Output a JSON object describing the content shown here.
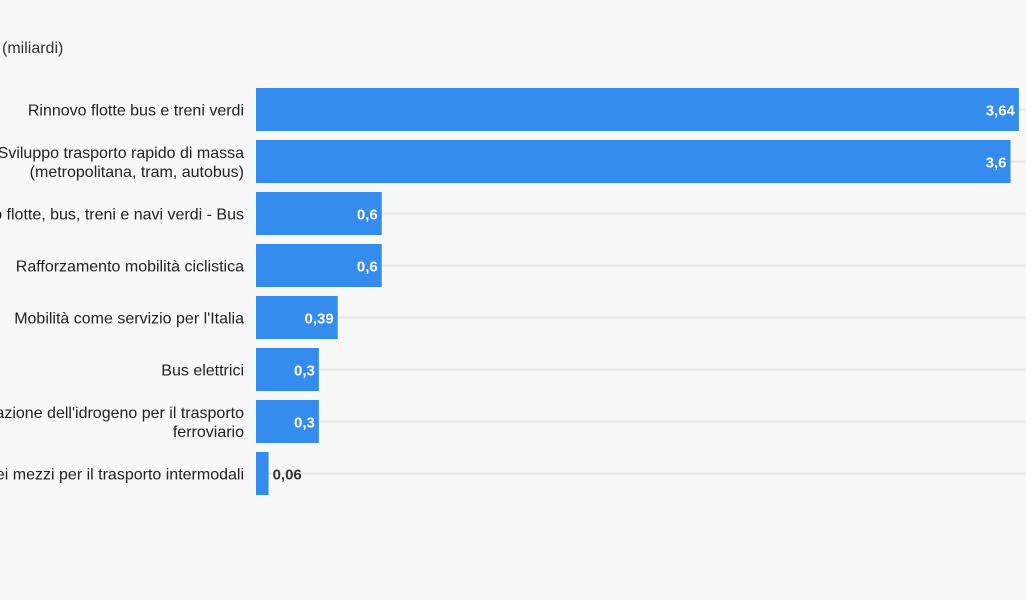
{
  "chart_data": {
    "type": "bar",
    "orientation": "horizontal",
    "unit_label": "(miliardi)",
    "categories": [
      [
        "Rinnovo flotte bus e treni verdi"
      ],
      [
        "Sviluppo trasporto rapido di massa",
        "(metropolitana, tram, autobus)"
      ],
      [
        "o flotte, bus, treni e navi verdi - Bus"
      ],
      [
        "Rafforzamento mobilità ciclistica"
      ],
      [
        "Mobilità come servizio per l'Italia"
      ],
      [
        "Bus elettrici"
      ],
      [
        "azione dell'idrogeno per il trasporto",
        "ferroviario"
      ],
      [
        "ei mezzi per il trasporto intermodali"
      ]
    ],
    "values": [
      3.64,
      3.6,
      0.6,
      0.6,
      0.39,
      0.3,
      0.3,
      0.06
    ],
    "value_labels": [
      "3,64",
      "3,6",
      "0,6",
      "0,6",
      "0,39",
      "0,3",
      "0,3",
      "0,06"
    ],
    "xlim": [
      0,
      3.65
    ],
    "grid": true,
    "colors": {
      "bar": "#348cee",
      "background": "#f8f8f8",
      "grid": "#e7e7e7"
    }
  }
}
